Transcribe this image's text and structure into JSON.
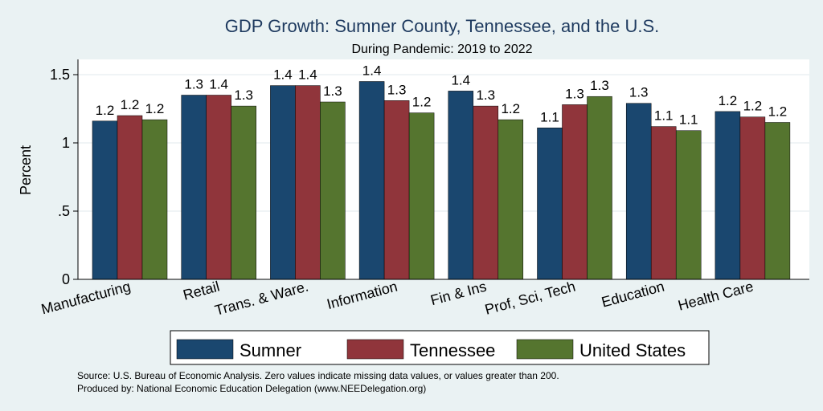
{
  "chart_data": {
    "type": "bar",
    "title": "GDP Growth: Sumner County, Tennessee, and the U.S.",
    "subtitle": "During Pandemic: 2019 to 2022",
    "ylabel": "Percent",
    "xlabel": "",
    "ylim": [
      0,
      1.6
    ],
    "yticks": [
      {
        "value": 0,
        "label": "0"
      },
      {
        "value": 0.5,
        "label": ".5"
      },
      {
        "value": 1,
        "label": "1"
      },
      {
        "value": 1.5,
        "label": "1.5"
      }
    ],
    "grid": true,
    "legend_position": "bottom",
    "categories": [
      "Manufacturing",
      "Retail",
      "Trans. & Ware.",
      "Information",
      "Fin & Ins",
      "Prof, Sci, Tech",
      "Education",
      "Health Care"
    ],
    "series": [
      {
        "name": "Sumner",
        "color": "#1a476f",
        "values": [
          1.16,
          1.35,
          1.42,
          1.45,
          1.38,
          1.11,
          1.29,
          1.23
        ],
        "labels": [
          "1.2",
          "1.3",
          "1.4",
          "1.4",
          "1.4",
          "1.1",
          "1.3",
          "1.2"
        ]
      },
      {
        "name": "Tennessee",
        "color": "#90353b",
        "values": [
          1.2,
          1.35,
          1.42,
          1.31,
          1.27,
          1.28,
          1.12,
          1.19
        ],
        "labels": [
          "1.2",
          "1.4",
          "1.4",
          "1.3",
          "1.3",
          "1.3",
          "1.1",
          "1.2"
        ]
      },
      {
        "name": "United States",
        "color": "#55752f",
        "values": [
          1.17,
          1.27,
          1.3,
          1.22,
          1.17,
          1.34,
          1.09,
          1.15
        ],
        "labels": [
          "1.2",
          "1.3",
          "1.3",
          "1.2",
          "1.2",
          "1.3",
          "1.1",
          "1.2"
        ]
      }
    ]
  },
  "footer": {
    "source": "Source: U.S. Bureau of Economic Analysis. Zero values indicate missing data values, or values greater than 200.",
    "produced_by": "Produced by: National Economic Education Delegation (www.NEEDelegation.org)"
  }
}
